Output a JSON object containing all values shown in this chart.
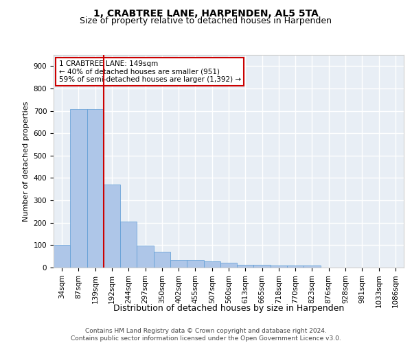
{
  "title1": "1, CRABTREE LANE, HARPENDEN, AL5 5TA",
  "title2": "Size of property relative to detached houses in Harpenden",
  "xlabel": "Distribution of detached houses by size in Harpenden",
  "ylabel": "Number of detached properties",
  "categories": [
    "34sqm",
    "87sqm",
    "139sqm",
    "192sqm",
    "244sqm",
    "297sqm",
    "350sqm",
    "402sqm",
    "455sqm",
    "507sqm",
    "560sqm",
    "613sqm",
    "665sqm",
    "718sqm",
    "770sqm",
    "823sqm",
    "876sqm",
    "928sqm",
    "981sqm",
    "1033sqm",
    "1086sqm"
  ],
  "values": [
    100,
    707,
    707,
    372,
    205,
    97,
    72,
    33,
    34,
    27,
    22,
    11,
    11,
    8,
    10,
    10,
    0,
    0,
    0,
    0,
    0
  ],
  "bar_color": "#aec6e8",
  "bar_edge_color": "#5b9bd5",
  "vline_x_index": 2,
  "vline_color": "#cc0000",
  "annotation_text": "1 CRABTREE LANE: 149sqm\n← 40% of detached houses are smaller (951)\n59% of semi-detached houses are larger (1,392) →",
  "annotation_box_color": "#ffffff",
  "annotation_box_edge": "#cc0000",
  "footer_text": "Contains HM Land Registry data © Crown copyright and database right 2024.\nContains public sector information licensed under the Open Government Licence v3.0.",
  "ylim": [
    0,
    950
  ],
  "yticks": [
    0,
    100,
    200,
    300,
    400,
    500,
    600,
    700,
    800,
    900
  ],
  "bg_color": "#e8eef5",
  "grid_color": "#ffffff",
  "title1_fontsize": 10,
  "title2_fontsize": 9,
  "xlabel_fontsize": 9,
  "ylabel_fontsize": 8,
  "tick_fontsize": 7.5,
  "footer_fontsize": 6.5
}
